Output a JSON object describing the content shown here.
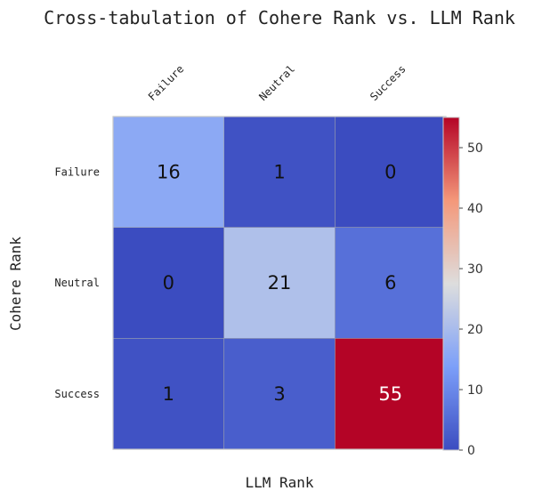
{
  "chart_data": {
    "type": "heatmap",
    "title": "Cross-tabulation of Cohere Rank vs. LLM Rank",
    "xlabel": "LLM Rank",
    "ylabel": "Cohere Rank",
    "x_categories": [
      "Failure",
      "Neutral",
      "Success"
    ],
    "y_categories": [
      "Failure",
      "Neutral",
      "Success"
    ],
    "values": [
      [
        16,
        1,
        0
      ],
      [
        0,
        21,
        6
      ],
      [
        1,
        3,
        55
      ]
    ],
    "colormap": "coolwarm",
    "vmin": 0,
    "vmax": 55,
    "colorbar_ticks": [
      0,
      10,
      20,
      30,
      40,
      50
    ],
    "x_ticks_position": "top"
  }
}
